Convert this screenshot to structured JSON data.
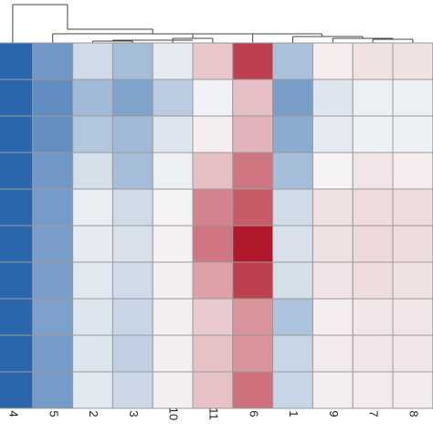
{
  "chart_data": {
    "type": "heatmap",
    "title": "",
    "xlabel": "",
    "ylabel": "",
    "columns": [
      "4",
      "5",
      "2",
      "3",
      "10",
      "11",
      "6",
      "1",
      "9",
      "7",
      "8"
    ],
    "rows": 10,
    "value_range": [
      -1,
      1
    ],
    "colorscale": {
      "low": "#1f5ea8",
      "mid": "#f7f7f7",
      "high": "#b2182b"
    },
    "values": [
      [
        -0.95,
        -0.62,
        -0.18,
        -0.38,
        -0.08,
        0.22,
        0.82,
        -0.35,
        0.05,
        0.1,
        0.1
      ],
      [
        -0.95,
        -0.7,
        -0.4,
        -0.55,
        -0.28,
        -0.03,
        0.25,
        -0.58,
        -0.12,
        -0.05,
        -0.05
      ],
      [
        -0.95,
        -0.68,
        -0.32,
        -0.4,
        -0.12,
        0.04,
        0.3,
        -0.5,
        -0.08,
        -0.04,
        -0.04
      ],
      [
        -0.95,
        -0.62,
        -0.16,
        -0.38,
        -0.05,
        0.25,
        0.58,
        -0.38,
        0.02,
        0.08,
        0.05
      ],
      [
        -0.95,
        -0.6,
        -0.06,
        -0.18,
        0.02,
        0.52,
        0.7,
        -0.18,
        0.1,
        0.12,
        0.12
      ],
      [
        -0.95,
        -0.58,
        -0.08,
        -0.15,
        0.03,
        0.58,
        1.0,
        -0.15,
        0.1,
        0.14,
        0.12
      ],
      [
        -0.95,
        -0.58,
        -0.1,
        -0.18,
        0.04,
        0.38,
        0.82,
        -0.16,
        0.09,
        0.12,
        0.1
      ],
      [
        -0.95,
        -0.56,
        -0.12,
        -0.22,
        0.04,
        0.2,
        0.45,
        -0.34,
        0.05,
        0.08,
        0.08
      ],
      [
        -0.95,
        -0.6,
        -0.12,
        -0.25,
        0.04,
        0.24,
        0.45,
        -0.22,
        0.06,
        0.08,
        0.08
      ],
      [
        -0.95,
        -0.6,
        -0.1,
        -0.2,
        0.04,
        0.24,
        0.6,
        -0.22,
        0.04,
        0.06,
        0.06
      ]
    ],
    "dendrogram": true,
    "legend": "none",
    "grid": true
  }
}
